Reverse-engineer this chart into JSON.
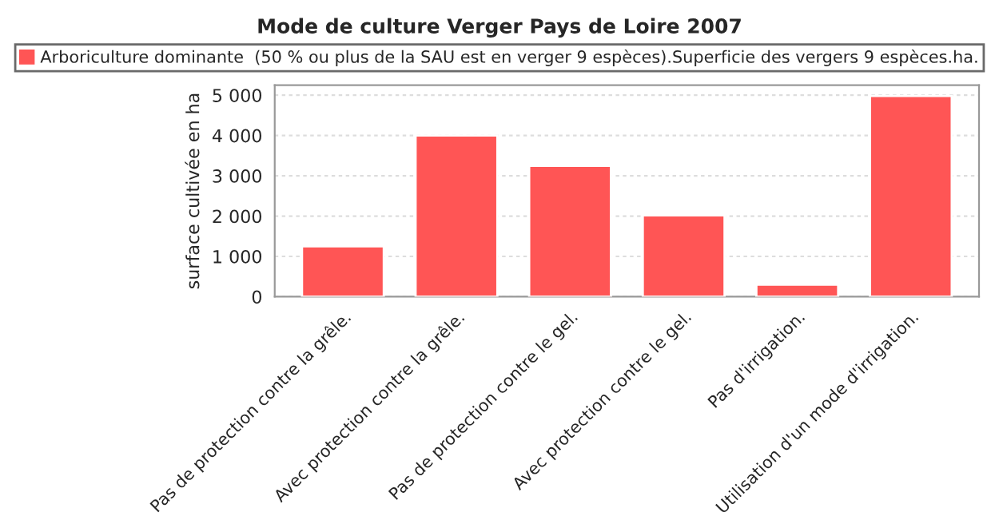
{
  "chart_data": {
    "type": "bar",
    "title": "Mode de culture Verger Pays de Loire 2007",
    "ylabel": "surface cultivée en ha",
    "categories": [
      "Pas de protection contre la grêle.",
      "Avec protection contre la grêle.",
      "Pas de protection contre le gel.",
      "Avec protection contre le gel.",
      "Pas d'irrigation.",
      "Utilisation d'un mode d'irrigation."
    ],
    "series": [
      {
        "name": "Arboriculture dominante  (50 % ou plus de la SAU est en verger 9 espèces).Superficie des vergers 9 espèces.ha.",
        "color": "#ff5555",
        "values": [
          1250,
          4000,
          3250,
          2020,
          300,
          4980
        ]
      }
    ],
    "ylim": [
      0,
      5250
    ],
    "yticks": [
      {
        "value": 0,
        "label": "0"
      },
      {
        "value": 1000,
        "label": "1 000"
      },
      {
        "value": 2000,
        "label": "2 000"
      },
      {
        "value": 3000,
        "label": "3 000"
      },
      {
        "value": 4000,
        "label": "4 000"
      },
      {
        "value": 5000,
        "label": "5 000"
      }
    ],
    "grid": "y",
    "legend": "top"
  }
}
